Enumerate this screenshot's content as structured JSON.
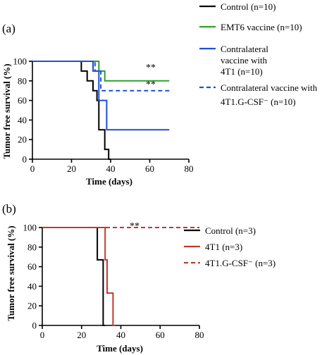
{
  "chart_data": [
    {
      "type": "line",
      "panel_label": "(a)",
      "xlabel": "Time (days)",
      "ylabel": "Tumor free survival (%)",
      "xlim": [
        0,
        80
      ],
      "ylim": [
        0,
        100
      ],
      "xticks": [
        "0",
        "20",
        "40",
        "60",
        "80"
      ],
      "yticks": [
        "0",
        "20",
        "40",
        "60",
        "80",
        "100"
      ],
      "grid": false,
      "legend_position": "top-right",
      "annotations": [
        "**",
        "**"
      ],
      "series": [
        {
          "name": "Control (n=10)",
          "color": "#000000",
          "dash": false,
          "points": [
            [
              0,
              100
            ],
            [
              25,
              100
            ],
            [
              25,
              90
            ],
            [
              28,
              90
            ],
            [
              28,
              80
            ],
            [
              31,
              80
            ],
            [
              31,
              70
            ],
            [
              33,
              70
            ],
            [
              33,
              60
            ],
            [
              34,
              60
            ],
            [
              34,
              30
            ],
            [
              37,
              30
            ],
            [
              37,
              10
            ],
            [
              39,
              10
            ],
            [
              39,
              0
            ],
            [
              40,
              0
            ]
          ]
        },
        {
          "name": "EMT6 vaccine (n=10)",
          "color": "#2ca02c",
          "dash": false,
          "points": [
            [
              0,
              100
            ],
            [
              34,
              100
            ],
            [
              34,
              90
            ],
            [
              37,
              90
            ],
            [
              37,
              80
            ],
            [
              70,
              80
            ]
          ]
        },
        {
          "name": "Contralateral vaccine with 4T1 (n=10)",
          "color": "#1f4fd1",
          "dash": false,
          "points": [
            [
              0,
              100
            ],
            [
              31,
              100
            ],
            [
              31,
              90
            ],
            [
              34,
              90
            ],
            [
              34,
              60
            ],
            [
              38,
              60
            ],
            [
              38,
              30
            ],
            [
              70,
              30
            ]
          ]
        },
        {
          "name": "Contralateral vaccine with 4T1.G-CSF⁻ (n=10)",
          "color": "#1f4fd1",
          "dash": true,
          "points": [
            [
              0,
              100
            ],
            [
              32,
              100
            ],
            [
              32,
              90
            ],
            [
              35,
              90
            ],
            [
              35,
              70
            ],
            [
              70,
              70
            ]
          ]
        }
      ]
    },
    {
      "type": "line",
      "panel_label": "(b)",
      "xlabel": "Time (days)",
      "ylabel": "Tumor free survival (%)",
      "xlim": [
        0,
        80
      ],
      "ylim": [
        0,
        100
      ],
      "xticks": [
        "0",
        "20",
        "40",
        "60",
        "80"
      ],
      "yticks": [
        "0",
        "20",
        "40",
        "60",
        "80",
        "100"
      ],
      "grid": false,
      "legend_position": "right",
      "annotations": [
        "**"
      ],
      "series": [
        {
          "name": "Control (n=3)",
          "color": "#000000",
          "dash": false,
          "points": [
            [
              0,
              100
            ],
            [
              28,
              100
            ],
            [
              28,
              67
            ],
            [
              31,
              67
            ],
            [
              31,
              0
            ],
            [
              32,
              0
            ]
          ]
        },
        {
          "name": "4T1 (n=3)",
          "color": "#c0392b",
          "dash": false,
          "points": [
            [
              0,
              100
            ],
            [
              32,
              100
            ],
            [
              32,
              67
            ],
            [
              33,
              67
            ],
            [
              33,
              33
            ],
            [
              36,
              33
            ],
            [
              36,
              0
            ],
            [
              37,
              0
            ]
          ]
        },
        {
          "name": "4T1.G-CSF⁻ (n=3)",
          "color": "#c0392b",
          "dash": true,
          "points": [
            [
              0,
              100
            ],
            [
              80,
              100
            ]
          ]
        }
      ]
    }
  ]
}
